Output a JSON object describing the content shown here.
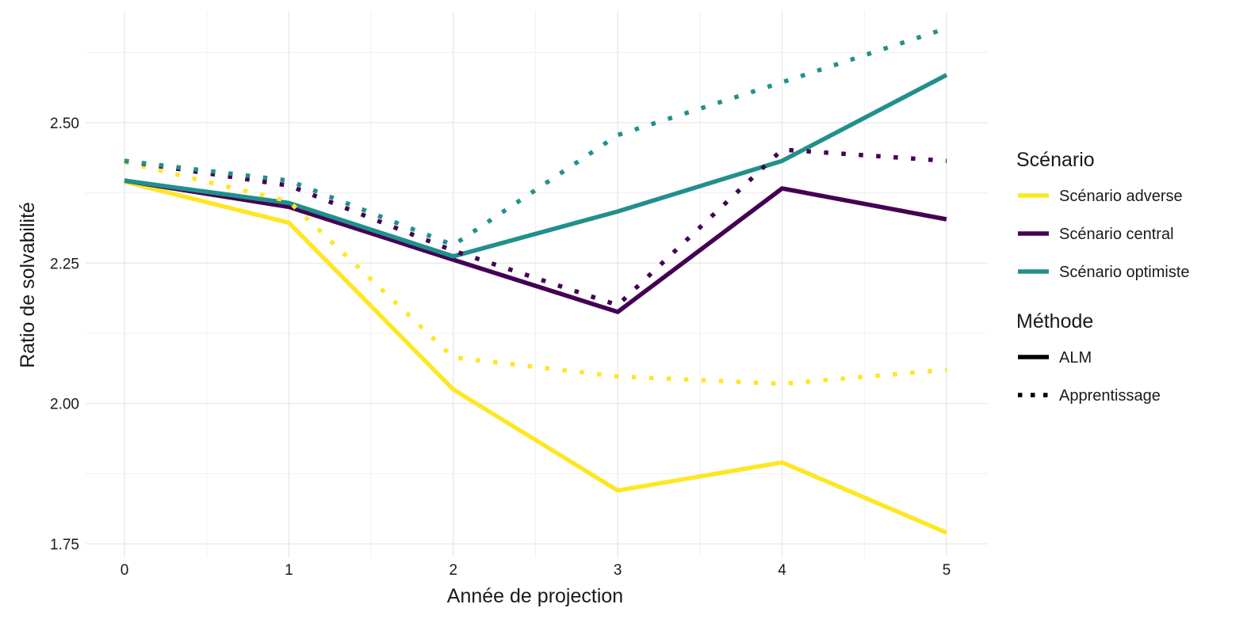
{
  "chart_data": {
    "type": "line",
    "title": "",
    "xlabel": "Année de projection",
    "ylabel": "Ratio de solvabilité",
    "x": [
      0,
      1,
      2,
      3,
      4,
      5
    ],
    "x_ticks": [
      "0",
      "1",
      "2",
      "3",
      "4",
      "5"
    ],
    "xlim": [
      -0.05,
      5.25
    ],
    "ylim": [
      1.75,
      2.65
    ],
    "y_ticks": [
      "1.75",
      "2.00",
      "2.25",
      "2.50"
    ],
    "y_tick_values": [
      1.75,
      2.0,
      2.25,
      2.5
    ],
    "grid": true,
    "legend_position": "right",
    "legend_groups": [
      {
        "title": "Scénario",
        "items": [
          {
            "label": "Scénario adverse",
            "color": "#FDE725"
          },
          {
            "label": "Scénario central",
            "color": "#440154"
          },
          {
            "label": "Scénario optimiste",
            "color": "#21908C"
          }
        ]
      },
      {
        "title": "Méthode",
        "items": [
          {
            "label": "ALM",
            "linetype": "solid"
          },
          {
            "label": "Apprentissage",
            "linetype": "dotted"
          }
        ]
      }
    ],
    "series": [
      {
        "scenario": "Scénario adverse",
        "method": "ALM",
        "color": "#FDE725",
        "linetype": "solid",
        "values": [
          2.395,
          2.322,
          2.025,
          1.845,
          1.895,
          1.77
        ]
      },
      {
        "scenario": "Scénario central",
        "method": "ALM",
        "color": "#440154",
        "linetype": "solid",
        "values": [
          2.397,
          2.35,
          2.256,
          2.163,
          2.383,
          2.328
        ]
      },
      {
        "scenario": "Scénario optimiste",
        "method": "ALM",
        "color": "#21908C",
        "linetype": "solid",
        "values": [
          2.397,
          2.357,
          2.262,
          2.342,
          2.432,
          2.585
        ]
      },
      {
        "scenario": "Scénario adverse",
        "method": "Apprentissage",
        "color": "#FDE725",
        "linetype": "dotted",
        "values": [
          2.43,
          2.36,
          2.082,
          2.048,
          2.035,
          2.06
        ]
      },
      {
        "scenario": "Scénario central",
        "method": "Apprentissage",
        "color": "#440154",
        "linetype": "dotted",
        "values": [
          2.432,
          2.388,
          2.272,
          2.175,
          2.452,
          2.432
        ]
      },
      {
        "scenario": "Scénario optimiste",
        "method": "Apprentissage",
        "color": "#21908C",
        "linetype": "dotted",
        "values": [
          2.432,
          2.397,
          2.282,
          2.478,
          2.572,
          2.668
        ]
      }
    ]
  }
}
